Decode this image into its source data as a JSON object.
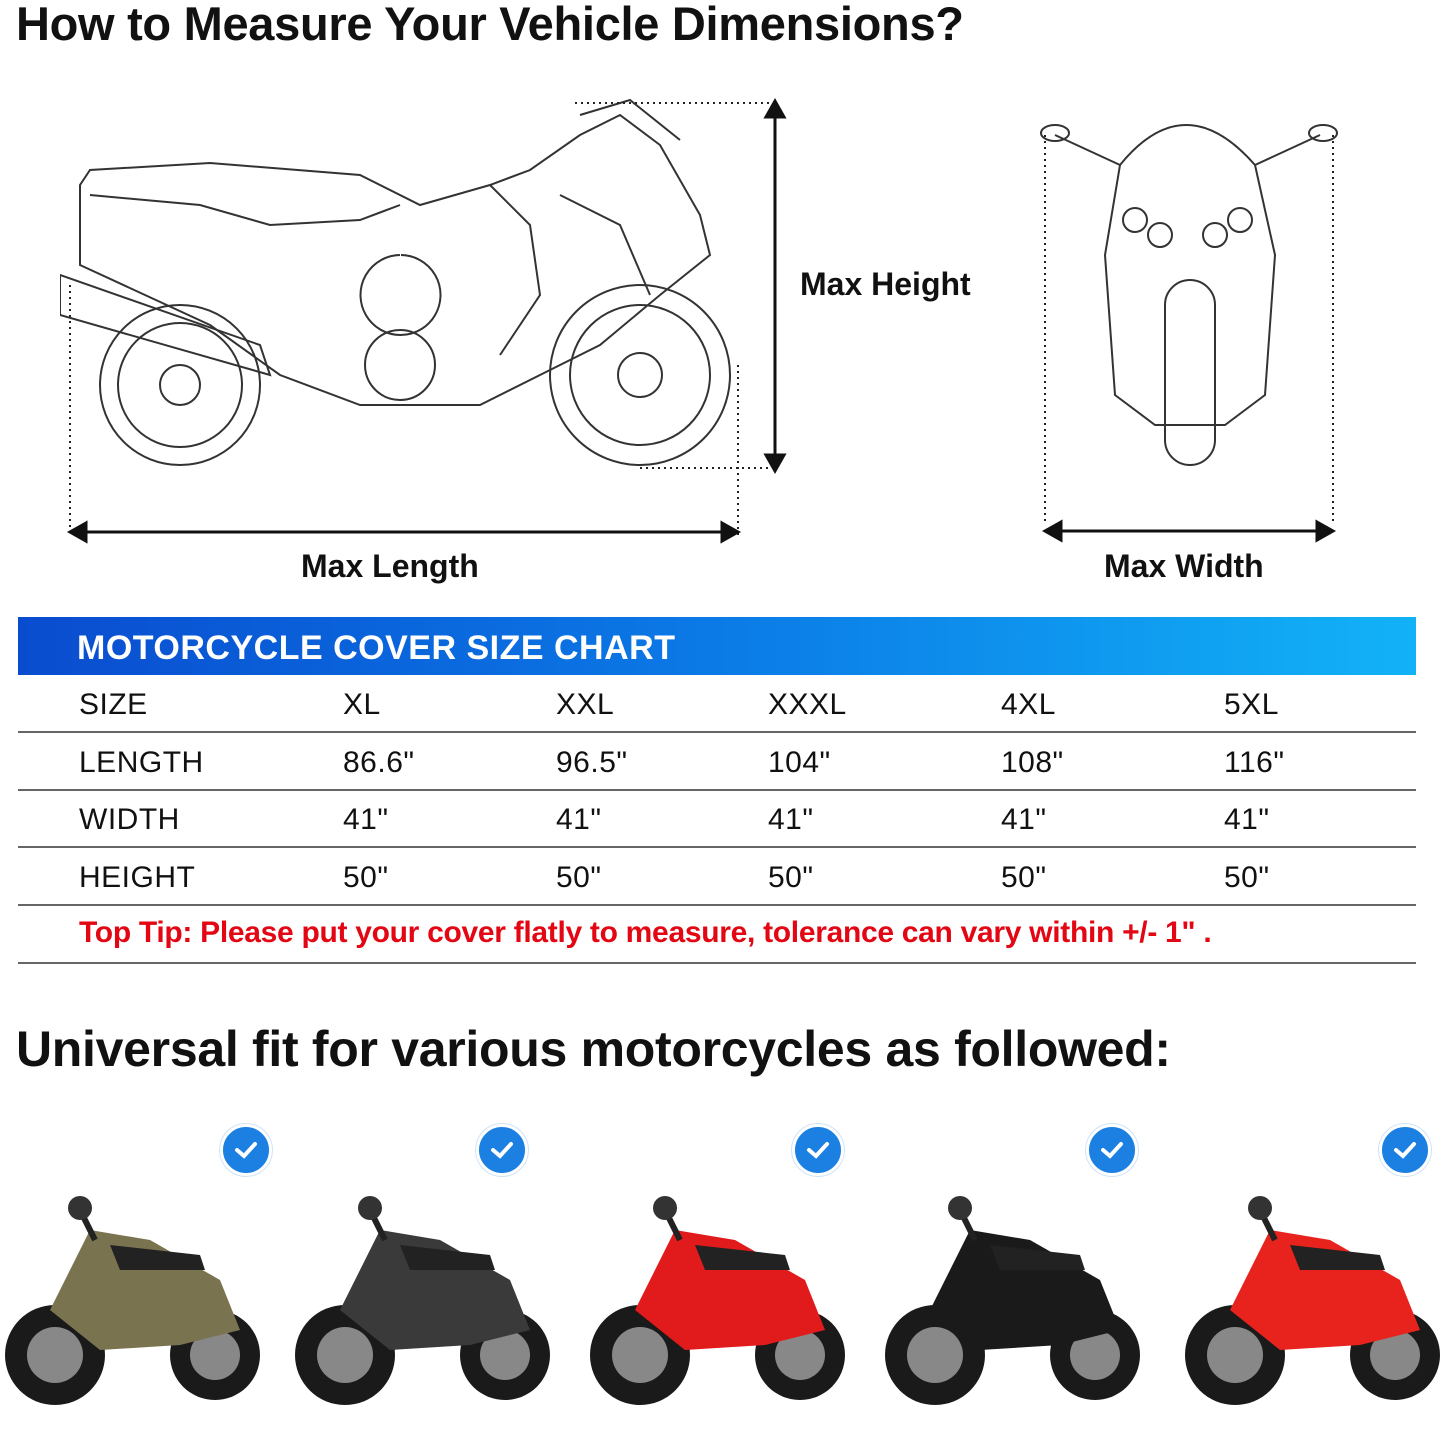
{
  "title": "How to Measure Your Vehicle Dimensions?",
  "labels": {
    "max_height": "Max Height",
    "max_length": "Max Length",
    "max_width": "Max Width"
  },
  "size_chart": {
    "title": "MOTORCYCLE COVER SIZE CHART",
    "rows": [
      {
        "label": "SIZE",
        "values": [
          "XL",
          "XXL",
          "XXXL",
          "4XL",
          "5XL"
        ]
      },
      {
        "label": "LENGTH",
        "values": [
          "86.6\"",
          "96.5\"",
          "104\"",
          "108\"",
          "116\""
        ]
      },
      {
        "label": "WIDTH",
        "values": [
          "41\"",
          "41\"",
          "41\"",
          "41\"",
          "41\""
        ]
      },
      {
        "label": "HEIGHT",
        "values": [
          "50\"",
          "50\"",
          "50\"",
          "50\"",
          "50\""
        ]
      }
    ],
    "tip": "Top Tip: Please put your cover flatly to measure, tolerance can vary within +/- 1\" ."
  },
  "fit_heading": "Universal fit for various motorcycles as followed:",
  "motorcycles": [
    {
      "type": "cruiser",
      "color": "#7a7350"
    },
    {
      "type": "scooter",
      "color": "#3a3a3a"
    },
    {
      "type": "sport",
      "color": "#e11b1b"
    },
    {
      "type": "chopper",
      "color": "#1a1a1a"
    },
    {
      "type": "vespa",
      "color": "#e8231e"
    }
  ],
  "colors": {
    "banner_start": "#0a4ccf",
    "banner_end": "#12b2f7",
    "tip": "#e30613",
    "check": "#1c7fe2"
  },
  "icons": [
    "check-circle-icon"
  ]
}
